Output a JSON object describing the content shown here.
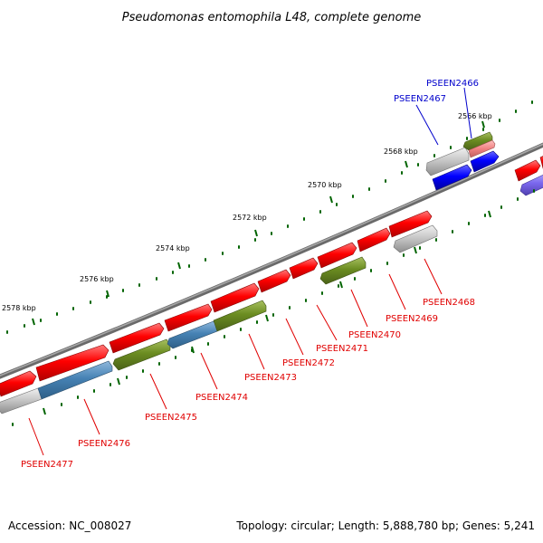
{
  "title": "Pseudomonas entomophila L48, complete genome",
  "footer": {
    "accession": "Accession: NC_008027",
    "topology": "Topology: circular; Length: 5,888,780 bp; Genes: 5,241"
  },
  "tick_labels": [
    "2578 kbp",
    "2576 kbp",
    "2574 kbp",
    "2572 kbp",
    "2570 kbp",
    "2568 kbp",
    "2566 kbp"
  ],
  "gene_labels": [
    "PSEEN2466",
    "PSEEN2467",
    "PSEEN2468",
    "PSEEN2469",
    "PSEEN2470",
    "PSEEN2471",
    "PSEEN2472",
    "PSEEN2473",
    "PSEEN2474",
    "PSEEN2475",
    "PSEEN2476",
    "PSEEN2477"
  ],
  "colors": {
    "red": "#e8000b",
    "blue": "#0a10e0",
    "green": "#6b8c21",
    "steel_blue": "#4682b4",
    "gray": "#c0c0c0",
    "pink": "#f08080",
    "purple": "#7b68ee",
    "backbone": "#808080",
    "tick": "#006400",
    "label_red": "#e00000",
    "label_blue": "#0000cc"
  }
}
